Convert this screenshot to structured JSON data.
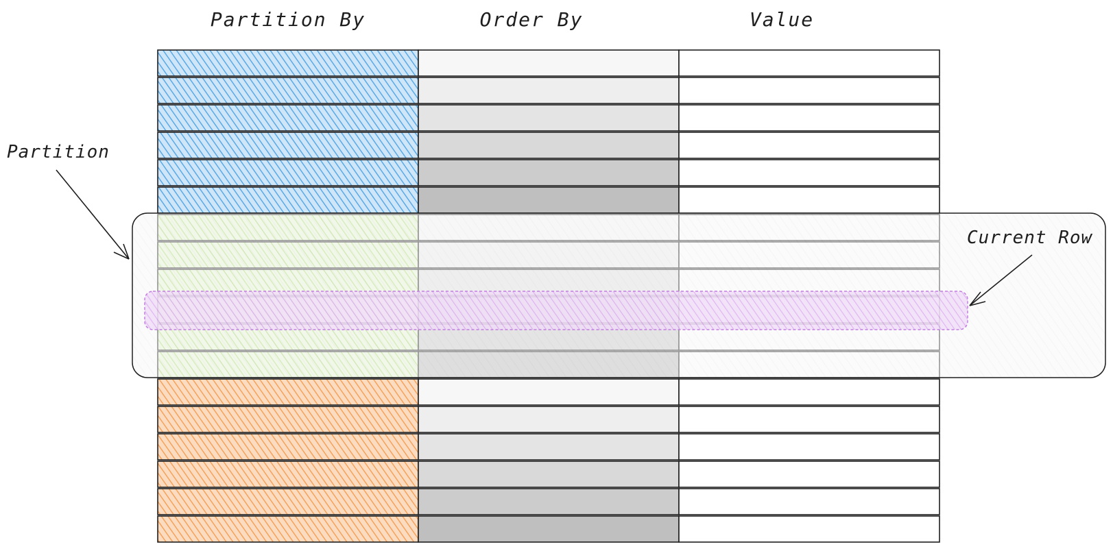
{
  "headers": {
    "partition_by": "Partition By",
    "order_by": "Order By",
    "value": "Value"
  },
  "annotations": {
    "partition": "Partition",
    "current_row": "Current Row"
  },
  "rows": {
    "partition_fills": [
      "blue",
      "blue",
      "blue",
      "blue",
      "blue",
      "blue",
      "green",
      "green",
      "green",
      "green",
      "green",
      "green",
      "orange",
      "orange",
      "orange",
      "orange",
      "orange",
      "orange"
    ],
    "order_shades": [
      0,
      1,
      2,
      3,
      4,
      5,
      0,
      1,
      2,
      3,
      4,
      5,
      0,
      1,
      2,
      3,
      4,
      5
    ],
    "current_row_index": 9
  },
  "colors": {
    "blue": "#5aa9e6",
    "green": "#b2e07a",
    "orange": "#f4a25c",
    "current_row": "#d9a7ee",
    "stroke": "#1e1e1e",
    "shades": [
      "#f7f7f7",
      "#eeeeee",
      "#e4e4e4",
      "#d9d9d9",
      "#cccccc",
      "#bfbfbf"
    ]
  }
}
